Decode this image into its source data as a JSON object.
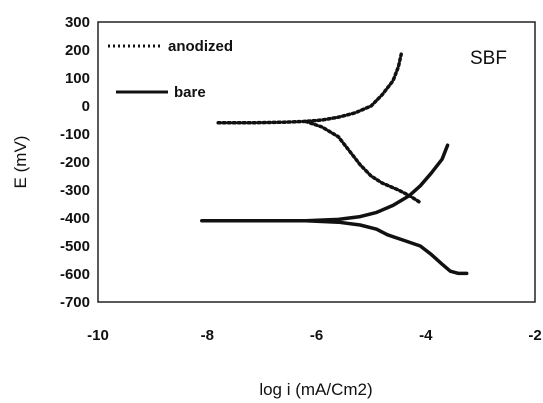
{
  "chart_data": {
    "type": "line",
    "title": "",
    "xlabel": "log i (mA/Cm2)",
    "ylabel": "E (mV)",
    "xlim": [
      -10,
      -2
    ],
    "ylim": [
      -700,
      300
    ],
    "x_ticks": [
      -10,
      -8,
      -6,
      -4,
      -2
    ],
    "y_ticks": [
      300,
      200,
      100,
      0,
      -100,
      -200,
      -300,
      -400,
      -500,
      -600,
      -700
    ],
    "grid": false,
    "legend": "top-left",
    "annotation": "SBF",
    "series": [
      {
        "name": "anodized",
        "style": "dotted",
        "color": "#111111",
        "branches": [
          {
            "x": [
              -7.8,
              -7.2,
              -6.6,
              -6.2,
              -5.9,
              -5.6,
              -5.3,
              -5.0,
              -4.8,
              -4.6,
              -4.5,
              -4.45
            ],
            "y": [
              -60,
              -60,
              -58,
              -55,
              -50,
              -40,
              -25,
              0,
              40,
              90,
              140,
              185
            ]
          },
          {
            "x": [
              -6.2,
              -5.9,
              -5.6,
              -5.4,
              -5.2,
              -5.0,
              -4.8,
              -4.5,
              -4.3,
              -4.1
            ],
            "y": [
              -55,
              -75,
              -110,
              -160,
              -210,
              -250,
              -275,
              -300,
              -320,
              -345
            ]
          }
        ]
      },
      {
        "name": "bare",
        "style": "solid",
        "color": "#111111",
        "branches": [
          {
            "x": [
              -8.1,
              -7.5,
              -6.8,
              -6.2,
              -5.6,
              -5.2,
              -4.9,
              -4.6,
              -4.3,
              -4.1,
              -3.9,
              -3.7,
              -3.6
            ],
            "y": [
              -410,
              -410,
              -410,
              -410,
              -405,
              -395,
              -380,
              -355,
              -320,
              -285,
              -240,
              -190,
              -140
            ]
          },
          {
            "x": [
              -6.2,
              -5.6,
              -5.2,
              -4.9,
              -4.7,
              -4.4,
              -4.1,
              -3.9,
              -3.7,
              -3.55,
              -3.4,
              -3.25
            ],
            "y": [
              -410,
              -415,
              -425,
              -440,
              -460,
              -480,
              -500,
              -530,
              -565,
              -590,
              -598,
              -598
            ]
          }
        ]
      }
    ]
  }
}
